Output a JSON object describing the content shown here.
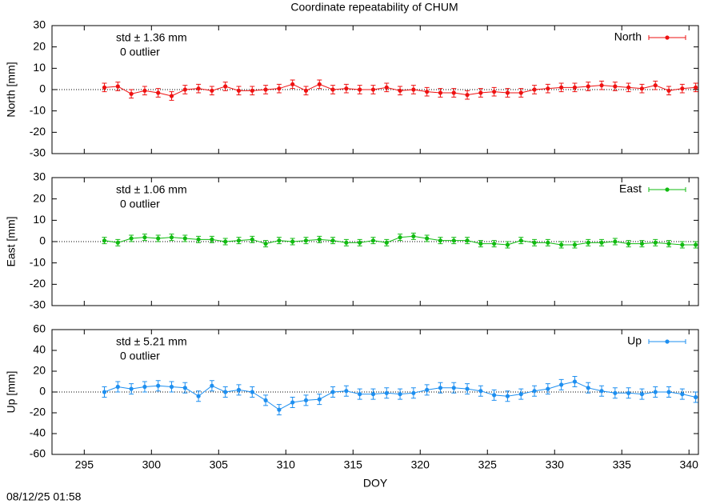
{
  "title": "Coordinate repeatability of CHUM",
  "timestamp": "08/12/25 01:58",
  "chart_data": [
    {
      "type": "line",
      "ylabel": "North [mm]",
      "ylim": [
        -30,
        30
      ],
      "yticks": [
        -30,
        -20,
        -10,
        0,
        10,
        20,
        30
      ],
      "zero_line": true,
      "annotations": [
        "std ± 1.36 mm",
        "0 outlier"
      ],
      "legend": "top-right",
      "x": [
        296.5,
        297.5,
        298.5,
        299.5,
        300.5,
        301.5,
        302.5,
        303.5,
        304.5,
        305.5,
        306.5,
        307.5,
        308.5,
        309.5,
        310.5,
        311.5,
        312.5,
        313.5,
        314.5,
        315.5,
        316.5,
        317.5,
        318.5,
        319.5,
        320.5,
        321.5,
        322.5,
        323.5,
        324.5,
        325.5,
        326.5,
        327.5,
        328.5,
        329.5,
        330.5,
        331.5,
        332.5,
        333.5,
        334.5,
        335.5,
        336.5,
        337.5,
        338.5,
        339.5,
        340.5
      ],
      "series": [
        {
          "name": "North",
          "color": "#ee1111",
          "values": [
            1,
            1.5,
            -2,
            -0.5,
            -1.5,
            -3,
            0,
            0.5,
            -0.5,
            1.5,
            -0.5,
            -0.5,
            0,
            0.5,
            2.5,
            -0.5,
            2.5,
            0,
            0.5,
            0,
            0,
            1,
            -0.5,
            0,
            -1,
            -1.5,
            -1.5,
            -2.5,
            -1.5,
            -1,
            -1.5,
            -1.5,
            0,
            0.5,
            1,
            1,
            1.5,
            2,
            1.5,
            1,
            0.5,
            2,
            -0.5,
            0.5,
            1
          ],
          "errors": [
            2,
            2,
            2,
            2,
            2,
            2,
            2,
            2,
            2,
            2,
            2,
            2,
            2,
            2,
            2,
            2,
            2,
            2,
            2,
            2,
            2,
            2,
            2,
            2,
            2,
            2,
            2,
            2,
            2,
            2,
            2,
            2,
            2,
            2,
            2,
            2,
            2,
            2,
            2,
            2,
            2,
            2,
            2,
            2,
            2
          ]
        }
      ]
    },
    {
      "type": "line",
      "ylabel": "East [mm]",
      "ylim": [
        -30,
        30
      ],
      "yticks": [
        -30,
        -20,
        -10,
        0,
        10,
        20,
        30
      ],
      "zero_line": true,
      "annotations": [
        "std ± 1.06 mm",
        "0 outlier"
      ],
      "legend": "top-right",
      "x": [
        296.5,
        297.5,
        298.5,
        299.5,
        300.5,
        301.5,
        302.5,
        303.5,
        304.5,
        305.5,
        306.5,
        307.5,
        308.5,
        309.5,
        310.5,
        311.5,
        312.5,
        313.5,
        314.5,
        315.5,
        316.5,
        317.5,
        318.5,
        319.5,
        320.5,
        321.5,
        322.5,
        323.5,
        324.5,
        325.5,
        326.5,
        327.5,
        328.5,
        329.5,
        330.5,
        331.5,
        332.5,
        333.5,
        334.5,
        335.5,
        336.5,
        337.5,
        338.5,
        339.5,
        340.5
      ],
      "series": [
        {
          "name": "East",
          "color": "#11bb11",
          "values": [
            0.5,
            -0.5,
            1.5,
            2,
            1.5,
            2,
            1.5,
            1,
            1,
            0,
            0.5,
            1,
            -1,
            0.5,
            0,
            0.5,
            1,
            0.5,
            -0.5,
            -0.5,
            0.5,
            -0.5,
            2,
            2.5,
            1.5,
            0.5,
            0.5,
            0.5,
            -1,
            -1,
            -1.5,
            0.5,
            -0.5,
            -0.5,
            -1.5,
            -1.5,
            -0.5,
            -0.5,
            0,
            -1,
            -1,
            -0.5,
            -1,
            -1.5,
            -1.5
          ],
          "errors": [
            1.5,
            1.5,
            1.5,
            1.5,
            1.5,
            1.5,
            1.5,
            1.5,
            1.5,
            1.5,
            1.5,
            1.5,
            1.5,
            1.5,
            1.5,
            1.5,
            1.5,
            1.5,
            1.5,
            1.5,
            1.5,
            1.5,
            1.5,
            1.5,
            1.5,
            1.5,
            1.5,
            1.5,
            1.5,
            1.5,
            1.5,
            1.5,
            1.5,
            1.5,
            1.5,
            1.5,
            1.5,
            1.5,
            1.5,
            1.5,
            1.5,
            1.5,
            1.5,
            1.5,
            1.5
          ]
        }
      ]
    },
    {
      "type": "line",
      "ylabel": "Up [mm]",
      "xlabel": "DOY",
      "ylim": [
        -60,
        60
      ],
      "yticks": [
        -60,
        -40,
        -20,
        0,
        20,
        40,
        60
      ],
      "zero_line": true,
      "xlim": [
        292.6,
        340.7
      ],
      "xticks": [
        295,
        300,
        305,
        310,
        315,
        320,
        325,
        330,
        335,
        340
      ],
      "annotations": [
        "std ± 5.21 mm",
        "0 outlier"
      ],
      "legend": "top-right",
      "x": [
        296.5,
        297.5,
        298.5,
        299.5,
        300.5,
        301.5,
        302.5,
        303.5,
        304.5,
        305.5,
        306.5,
        307.5,
        308.5,
        309.5,
        310.5,
        311.5,
        312.5,
        313.5,
        314.5,
        315.5,
        316.5,
        317.5,
        318.5,
        319.5,
        320.5,
        321.5,
        322.5,
        323.5,
        324.5,
        325.5,
        326.5,
        327.5,
        328.5,
        329.5,
        330.5,
        331.5,
        332.5,
        333.5,
        334.5,
        335.5,
        336.5,
        337.5,
        338.5,
        339.5,
        340.5
      ],
      "series": [
        {
          "name": "Up",
          "color": "#1e8ff0",
          "values": [
            0,
            5,
            3,
            5,
            6,
            5,
            4,
            -4,
            6,
            0,
            2,
            0,
            -8,
            -17,
            -10,
            -8,
            -7,
            0,
            1,
            -2,
            -2,
            -1,
            -2,
            -1,
            2,
            4,
            4,
            3,
            1,
            -3,
            -4,
            -2,
            1,
            3,
            7,
            10,
            4,
            1,
            -1,
            -1,
            -2,
            0,
            0,
            -2,
            -5
          ],
          "errors": [
            5,
            5,
            5,
            5,
            5,
            5,
            5,
            5,
            5,
            5,
            5,
            5,
            5,
            5,
            5,
            5,
            5,
            5,
            5,
            5,
            5,
            5,
            5,
            5,
            5,
            5,
            5,
            5,
            5,
            5,
            5,
            5,
            5,
            5,
            5,
            5,
            5,
            5,
            5,
            5,
            5,
            5,
            5,
            5,
            5
          ]
        }
      ]
    }
  ]
}
